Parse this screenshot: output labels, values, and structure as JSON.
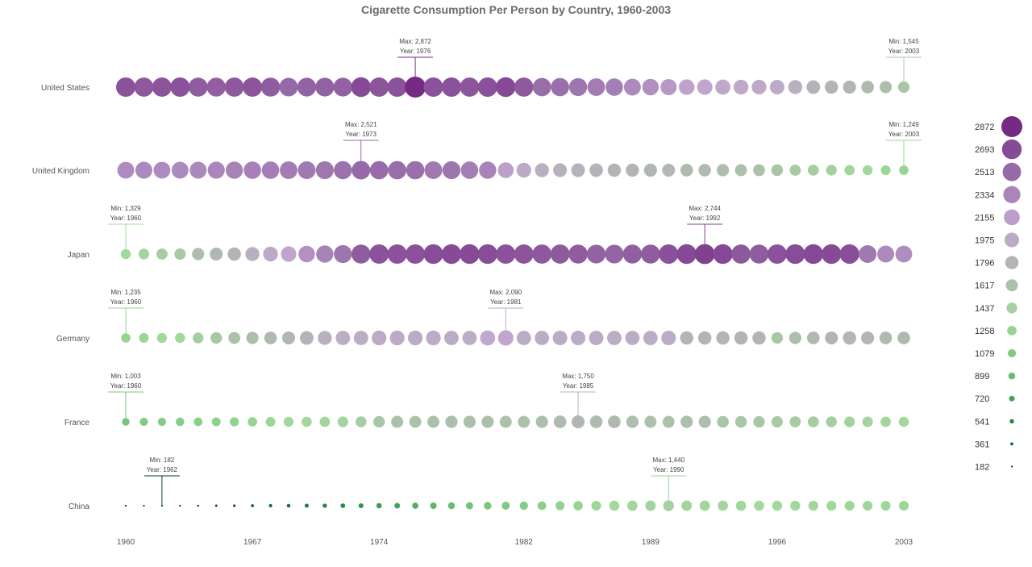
{
  "chart_data": {
    "type": "scatter",
    "title": "Cigarette Consumption Per Person by Country, 1960-2003",
    "x": [
      1960,
      1961,
      1962,
      1963,
      1964,
      1965,
      1966,
      1967,
      1968,
      1969,
      1970,
      1971,
      1972,
      1973,
      1974,
      1975,
      1976,
      1977,
      1978,
      1979,
      1980,
      1981,
      1982,
      1983,
      1984,
      1985,
      1986,
      1987,
      1988,
      1989,
      1990,
      1991,
      1992,
      1993,
      1994,
      1995,
      1996,
      1997,
      1998,
      1999,
      2000,
      2001,
      2002,
      2003
    ],
    "x_ticks": [
      1960,
      1967,
      1974,
      1982,
      1989,
      1996,
      2003
    ],
    "x_tick_labels": [
      "1960",
      "1967",
      "1974",
      "1982",
      "1989",
      "1996",
      "2003"
    ],
    "series": [
      {
        "name": "United States",
        "values": [
          2650,
          2620,
          2640,
          2650,
          2600,
          2580,
          2620,
          2640,
          2600,
          2530,
          2560,
          2560,
          2570,
          2700,
          2640,
          2650,
          2872,
          2650,
          2650,
          2630,
          2660,
          2700,
          2610,
          2500,
          2490,
          2450,
          2400,
          2380,
          2300,
          2250,
          2200,
          2120,
          2100,
          2050,
          2010,
          1990,
          1980,
          1900,
          1850,
          1800,
          1760,
          1700,
          1640,
          1545
        ],
        "annotations": [
          {
            "label": "Max: 2,872",
            "year_label": "Year: 1976",
            "x": 1976
          },
          {
            "label": "Min: 1,545",
            "year_label": "Year: 2003",
            "x": 2003
          }
        ]
      },
      {
        "name": "United Kingdom",
        "values": [
          2290,
          2310,
          2290,
          2300,
          2310,
          2330,
          2350,
          2370,
          2380,
          2400,
          2420,
          2440,
          2470,
          2521,
          2510,
          2500,
          2490,
          2420,
          2450,
          2380,
          2350,
          2150,
          2000,
          1900,
          1870,
          1850,
          1820,
          1800,
          1780,
          1760,
          1740,
          1700,
          1680,
          1660,
          1620,
          1600,
          1560,
          1500,
          1470,
          1430,
          1380,
          1330,
          1300,
          1249
        ],
        "annotations": [
          {
            "label": "Max: 2,521",
            "year_label": "Year: 1973",
            "x": 1973
          },
          {
            "label": "Min: 1,249",
            "year_label": "Year: 2003",
            "x": 2003
          }
        ]
      },
      {
        "name": "Japan",
        "values": [
          1329,
          1420,
          1500,
          1520,
          1650,
          1740,
          1800,
          1900,
          2000,
          2100,
          2250,
          2350,
          2450,
          2600,
          2650,
          2650,
          2650,
          2680,
          2690,
          2690,
          2680,
          2650,
          2640,
          2620,
          2610,
          2600,
          2560,
          2550,
          2580,
          2600,
          2660,
          2700,
          2744,
          2700,
          2620,
          2600,
          2650,
          2680,
          2700,
          2690,
          2670,
          2420,
          2300,
          2280
        ],
        "annotations": [
          {
            "label": "Min: 1,329",
            "year_label": "Year: 1960",
            "x": 1960
          },
          {
            "label": "Max: 2,744",
            "year_label": "Year: 1992",
            "x": 1992
          }
        ]
      },
      {
        "name": "Germany",
        "values": [
          1235,
          1280,
          1320,
          1350,
          1450,
          1550,
          1600,
          1650,
          1700,
          1750,
          1850,
          1900,
          1950,
          1950,
          2000,
          2000,
          2000,
          2000,
          1950,
          1950,
          2050,
          2090,
          1950,
          1950,
          1980,
          1980,
          1960,
          1950,
          1950,
          1950,
          1980,
          1800,
          1800,
          1800,
          1800,
          1800,
          1550,
          1650,
          1700,
          1750,
          1800,
          1750,
          1700,
          1700
        ],
        "annotations": [
          {
            "label": "Min: 1,235",
            "year_label": "Year: 1960",
            "x": 1960
          },
          {
            "label": "Max: 2,090",
            "year_label": "Year: 1981",
            "x": 1981
          }
        ]
      },
      {
        "name": "France",
        "values": [
          1003,
          1080,
          1100,
          1120,
          1150,
          1180,
          1210,
          1250,
          1280,
          1320,
          1350,
          1380,
          1420,
          1460,
          1550,
          1620,
          1600,
          1620,
          1650,
          1650,
          1640,
          1620,
          1600,
          1640,
          1700,
          1750,
          1700,
          1700,
          1660,
          1620,
          1600,
          1650,
          1640,
          1580,
          1560,
          1540,
          1520,
          1490,
          1470,
          1450,
          1430,
          1410,
          1380,
          1350
        ],
        "annotations": [
          {
            "label": "Min: 1,003",
            "year_label": "Year: 1960",
            "x": 1960
          },
          {
            "label": "Max: 1,750",
            "year_label": "Year: 1985",
            "x": 1985
          }
        ]
      },
      {
        "name": "China",
        "values": [
          200,
          190,
          182,
          200,
          230,
          260,
          300,
          350,
          400,
          450,
          500,
          540,
          580,
          620,
          680,
          720,
          800,
          850,
          900,
          950,
          1000,
          1050,
          1100,
          1150,
          1200,
          1250,
          1300,
          1350,
          1380,
          1400,
          1440,
          1400,
          1380,
          1370,
          1360,
          1350,
          1340,
          1330,
          1320,
          1320,
          1310,
          1300,
          1300,
          1300
        ],
        "annotations": [
          {
            "label": "Min:   182",
            "year_label": "Year: 1962",
            "x": 1962
          },
          {
            "label": "Max: 1,440",
            "year_label": "Year: 1990",
            "x": 1990
          }
        ]
      }
    ],
    "legend": {
      "placement": "right",
      "values": [
        2872,
        2693,
        2513,
        2334,
        2155,
        1975,
        1796,
        1617,
        1437,
        1258,
        1079,
        899,
        720,
        541,
        361,
        182
      ],
      "labels": [
        "2872",
        "2693",
        "2513",
        "2334",
        "2155",
        "1975",
        "1796",
        "1617",
        "1437",
        "1258",
        "1079",
        "899",
        "720",
        "541",
        "361",
        "182"
      ]
    },
    "color_scale": {
      "stops": [
        "#00441b",
        "#238b45",
        "#74c476",
        "#a1d99b",
        "#b0b8b0",
        "#c2a5cf",
        "#9970ab",
        "#762a83"
      ]
    },
    "size_range": [
      182,
      2872
    ],
    "grid": false
  }
}
